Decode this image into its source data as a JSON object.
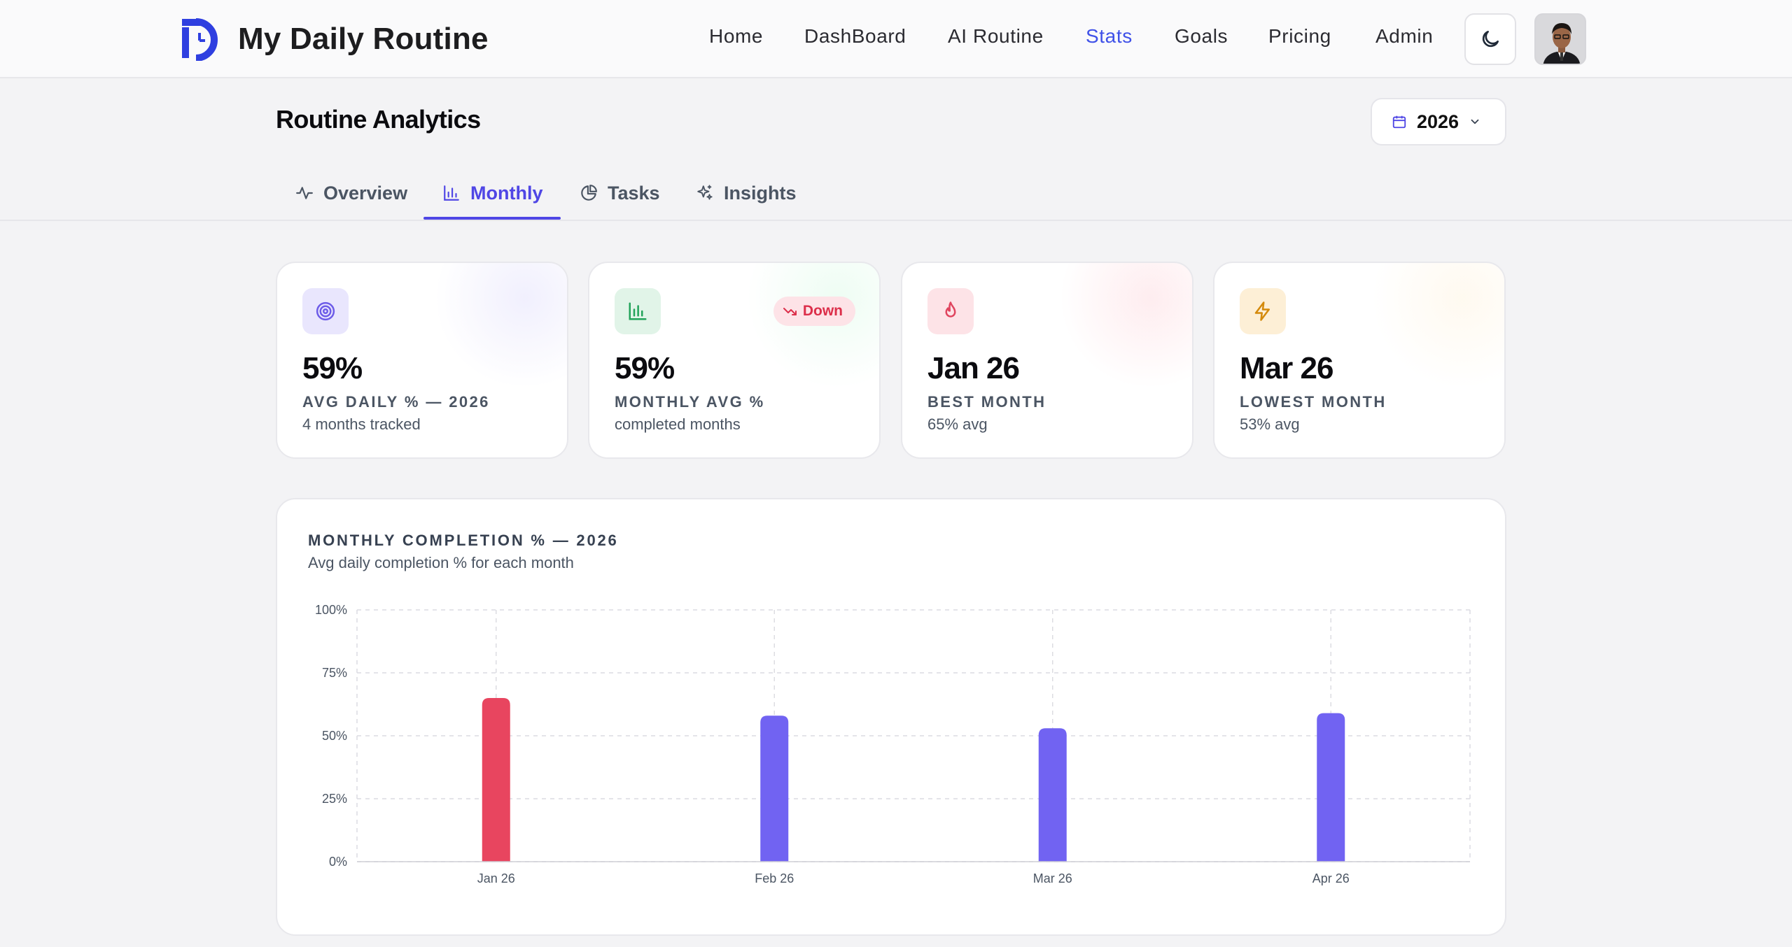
{
  "header": {
    "app_title": "My Daily Routine",
    "nav": [
      {
        "label": "Home",
        "active": false
      },
      {
        "label": "DashBoard",
        "active": false
      },
      {
        "label": "AI Routine",
        "active": false
      },
      {
        "label": "Stats",
        "active": true
      },
      {
        "label": "Goals",
        "active": false
      },
      {
        "label": "Pricing",
        "active": false
      },
      {
        "label": "Admin",
        "active": false
      }
    ],
    "theme_icon": "moon-icon"
  },
  "page": {
    "title": "Routine Analytics",
    "year_selector": {
      "value": "2026",
      "icon": "calendar-icon"
    }
  },
  "tabs": [
    {
      "label": "Overview",
      "icon": "activity-icon",
      "active": false
    },
    {
      "label": "Monthly",
      "icon": "bar-chart-icon",
      "active": true
    },
    {
      "label": "Tasks",
      "icon": "pie-chart-icon",
      "active": false
    },
    {
      "label": "Insights",
      "icon": "sparkles-icon",
      "active": false
    }
  ],
  "stats": [
    {
      "icon": "target-icon",
      "value": "59%",
      "label": "AVG DAILY % — 2026",
      "sub": "4 months tracked",
      "accent": "#6d5ce8"
    },
    {
      "icon": "bar-chart-icon",
      "value": "59%",
      "label": "MONTHLY AVG %",
      "sub": "completed months",
      "badge": "Down",
      "accent": "#22a35a"
    },
    {
      "icon": "flame-icon",
      "value": "Jan 26",
      "label": "BEST MONTH",
      "sub": "65% avg",
      "accent": "#e0455f"
    },
    {
      "icon": "zap-icon",
      "value": "Mar 26",
      "label": "LOWEST MONTH",
      "sub": "53% avg",
      "accent": "#d48a0c"
    }
  ],
  "chart_card": {
    "title": "MONTHLY COMPLETION % — 2026",
    "subtitle": "Avg daily completion % for each month"
  },
  "chart_data": {
    "type": "bar",
    "title": "MONTHLY COMPLETION % — 2026",
    "subtitle": "Avg daily completion % for each month",
    "categories": [
      "Jan 26",
      "Feb 26",
      "Mar 26",
      "Apr 26"
    ],
    "values": [
      65,
      58,
      53,
      59
    ],
    "colors": [
      "#e8455f",
      "#7163f2",
      "#7163f2",
      "#7163f2"
    ],
    "ylim": [
      0,
      100
    ],
    "y_ticks": [
      "0%",
      "25%",
      "50%",
      "75%",
      "100%"
    ],
    "grid": true,
    "xlabel": "",
    "ylabel": ""
  }
}
